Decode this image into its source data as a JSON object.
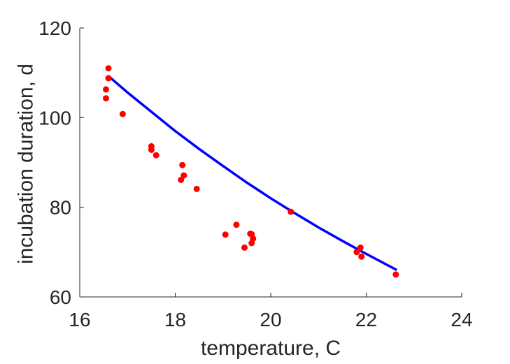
{
  "chart_data": {
    "type": "scatter",
    "title": "",
    "xlabel": "temperature, C",
    "ylabel": "incubation duration, d",
    "xlim": [
      16,
      24
    ],
    "ylim": [
      60,
      120
    ],
    "xticks": [
      16,
      18,
      20,
      22,
      24
    ],
    "yticks": [
      60,
      80,
      100,
      120
    ],
    "grid": false,
    "colors": {
      "points": "#ff0000",
      "fit_line": "#0000ff",
      "axes": "#262626"
    },
    "points": [
      {
        "x": 16.6,
        "y": 111.0
      },
      {
        "x": 16.6,
        "y": 108.8
      },
      {
        "x": 16.55,
        "y": 106.3
      },
      {
        "x": 16.55,
        "y": 104.3
      },
      {
        "x": 16.9,
        "y": 100.8
      },
      {
        "x": 17.5,
        "y": 93.6
      },
      {
        "x": 17.5,
        "y": 92.8
      },
      {
        "x": 17.6,
        "y": 91.6
      },
      {
        "x": 18.15,
        "y": 89.4
      },
      {
        "x": 18.18,
        "y": 87.1
      },
      {
        "x": 18.12,
        "y": 86.1
      },
      {
        "x": 18.45,
        "y": 84.1
      },
      {
        "x": 19.05,
        "y": 73.9
      },
      {
        "x": 19.28,
        "y": 76.1
      },
      {
        "x": 19.45,
        "y": 71.0
      },
      {
        "x": 19.57,
        "y": 74.1
      },
      {
        "x": 19.6,
        "y": 74.0
      },
      {
        "x": 19.6,
        "y": 72.0
      },
      {
        "x": 19.63,
        "y": 73.0
      },
      {
        "x": 20.42,
        "y": 79.0
      },
      {
        "x": 21.8,
        "y": 70.0
      },
      {
        "x": 21.88,
        "y": 71.0
      },
      {
        "x": 21.9,
        "y": 69.0
      },
      {
        "x": 22.62,
        "y": 65.0
      }
    ],
    "fit_line": [
      {
        "x": 16.63,
        "y": 109.0
      },
      {
        "x": 17.0,
        "y": 105.6
      },
      {
        "x": 17.5,
        "y": 101.3
      },
      {
        "x": 18.0,
        "y": 97.0
      },
      {
        "x": 18.5,
        "y": 93.0
      },
      {
        "x": 19.0,
        "y": 89.2
      },
      {
        "x": 19.5,
        "y": 85.5
      },
      {
        "x": 20.0,
        "y": 82.0
      },
      {
        "x": 20.5,
        "y": 78.7
      },
      {
        "x": 21.0,
        "y": 75.5
      },
      {
        "x": 21.5,
        "y": 72.5
      },
      {
        "x": 22.0,
        "y": 69.6
      },
      {
        "x": 22.64,
        "y": 66.0
      }
    ]
  }
}
